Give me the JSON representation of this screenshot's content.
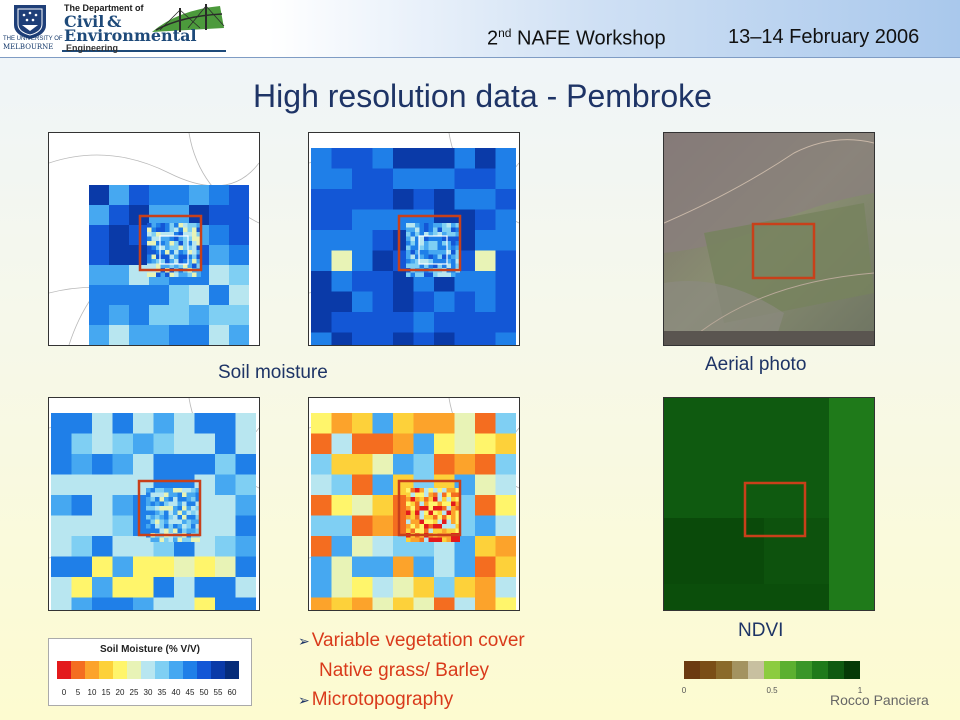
{
  "header": {
    "dept_title": "The Department of",
    "dept_civil": "Civil",
    "dept_amp": "&",
    "dept_env": "Environmental",
    "dept_eng": "Engineering",
    "uni_name_line1": "THE UNIVERSITY OF",
    "uni_name_line2": "MELBOURNE",
    "workshop_ordinal": "2",
    "workshop_suffix": "nd",
    "workshop_name": " NAFE Workshop",
    "dates": "13–14 February 2006"
  },
  "title": "High resolution data - Pembroke",
  "captions": {
    "soil_moisture": "Soil moisture",
    "aerial_photo": "Aerial photo",
    "ndvi": "NDVI"
  },
  "legend_soil": {
    "title": "Soil Moisture (% V/V)",
    "ticks": [
      "0",
      "5",
      "10",
      "15",
      "20",
      "25",
      "30",
      "35",
      "40",
      "45",
      "50",
      "55",
      "60"
    ],
    "colors": [
      "#e31a1c",
      "#f46d20",
      "#fca32b",
      "#fdd13a",
      "#fff56b",
      "#e8f3b6",
      "#b8e6f0",
      "#7fcff3",
      "#46a8f1",
      "#1f7fe8",
      "#1357d6",
      "#0a3aa8",
      "#062c7a"
    ]
  },
  "legend_ndvi": {
    "ticks": [
      "0",
      "0.5",
      "1"
    ],
    "colors": [
      "#6b3a10",
      "#7a4e16",
      "#8a6a2a",
      "#a39360",
      "#c8c0a0",
      "#8ccc40",
      "#5cb030",
      "#3a9628",
      "#1f7a1a",
      "#0f5a10",
      "#063a06"
    ]
  },
  "bullets": {
    "item1": "Variable vegetation cover",
    "item1_sub": "Native grass/ Barley",
    "item2": "Microtopography",
    "arrow_icon": "➢"
  },
  "author": "Rocco Panciera",
  "accent_colors": {
    "title": "#1e3466",
    "bullet_text": "#d93a1b",
    "frame_red": "#c8401a"
  }
}
